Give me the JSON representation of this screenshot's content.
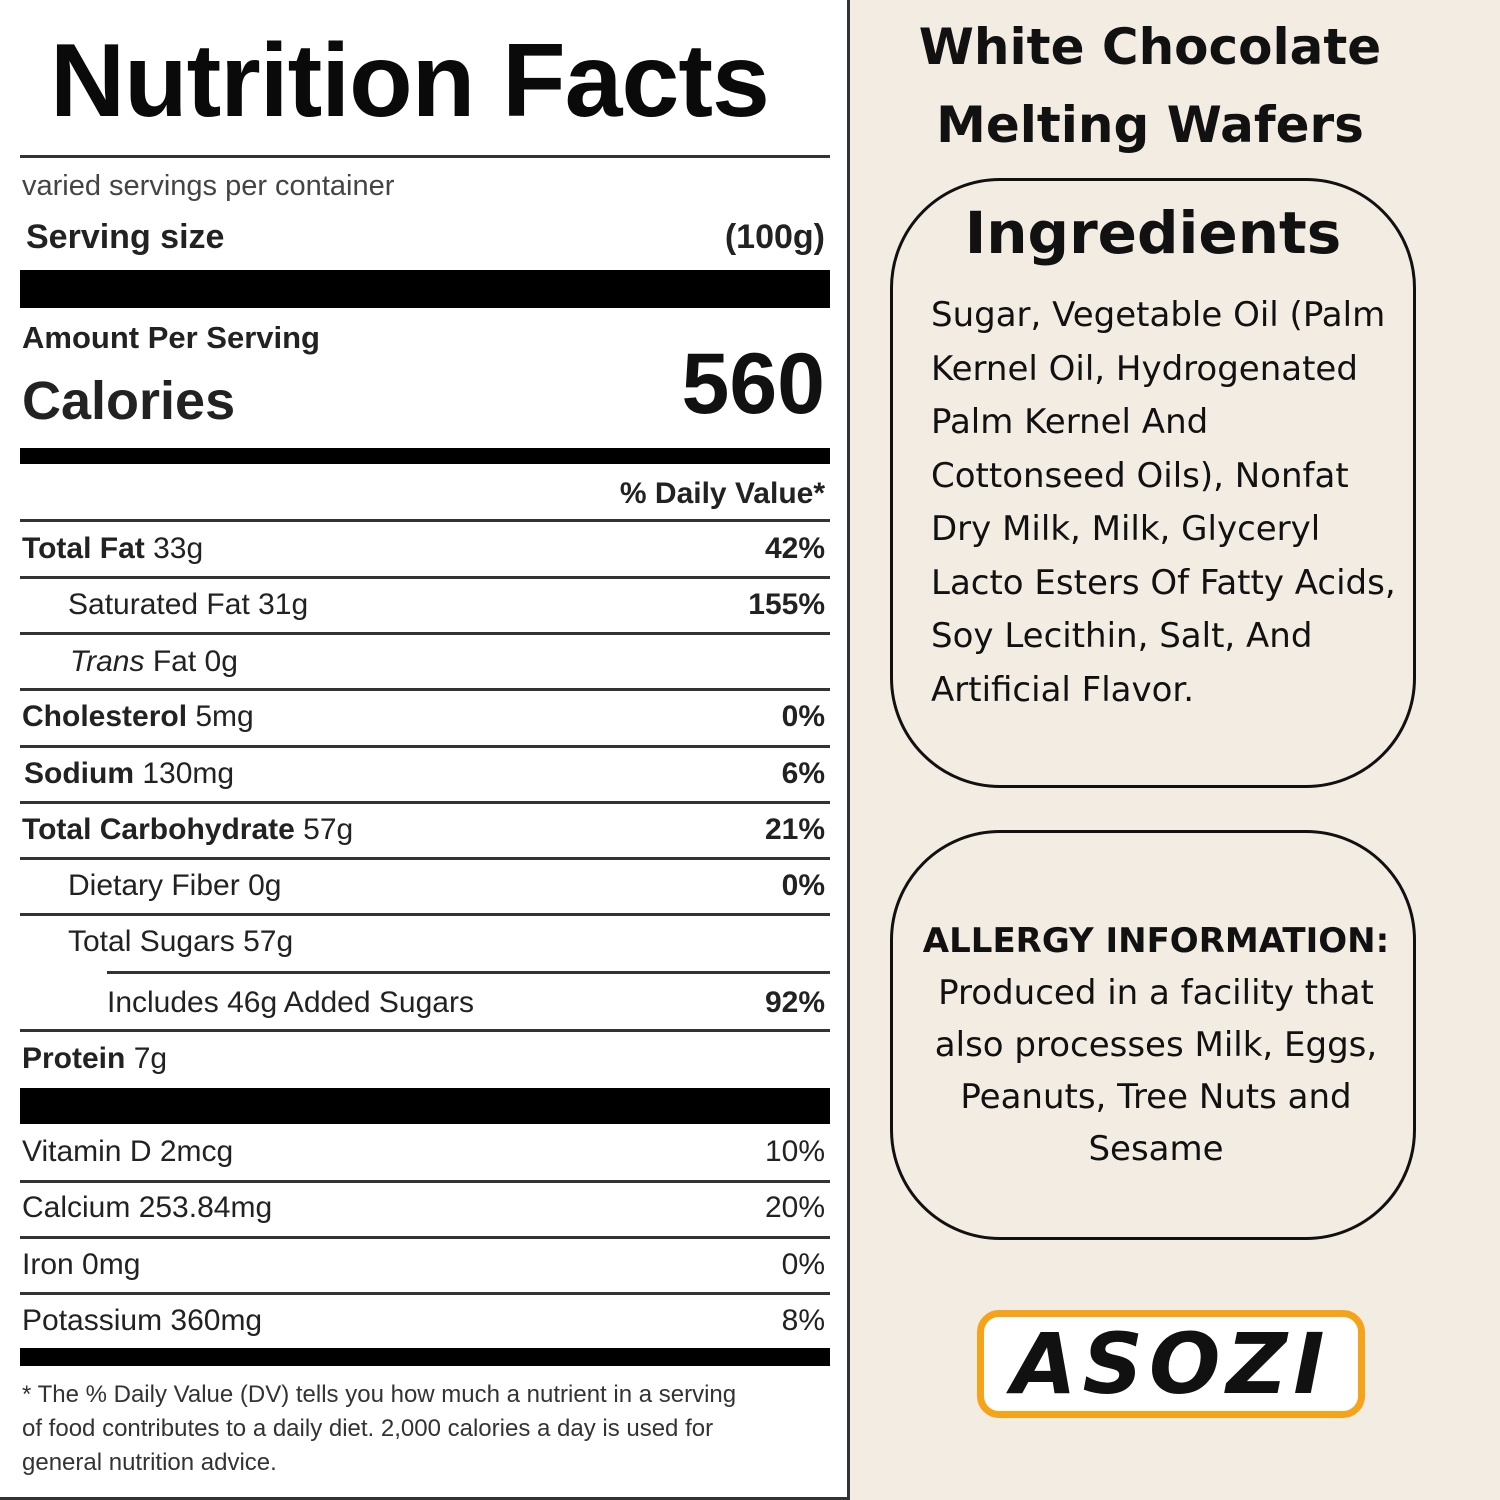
{
  "label": {
    "title": "Nutrition Facts",
    "servings_per_container": "varied servings per container",
    "serving_size_label": "Serving size",
    "serving_size_value": "(100g)",
    "amount_per_serving": "Amount Per Serving",
    "calories_label": "Calories",
    "calories_value": "560",
    "daily_value_header": "% Daily Value*",
    "rows": [
      {
        "name": "Total Fat",
        "amount": "33g",
        "dv": "42%"
      },
      {
        "name": "Saturated Fat",
        "amount": "31g",
        "dv": "155%"
      },
      {
        "name": "Trans",
        "name2": "Fat",
        "amount": "0g",
        "dv": ""
      },
      {
        "name": "Cholesterol",
        "amount": "5mg",
        "dv": "0%"
      },
      {
        "name": "Sodium",
        "amount": "130mg",
        "dv": "6%"
      },
      {
        "name": "Total Carbohydrate",
        "amount": "57g",
        "dv": "21%"
      },
      {
        "name": "Dietary Fiber",
        "amount": "0g",
        "dv": "0%"
      },
      {
        "name": "Total Sugars",
        "amount": "57g",
        "dv": ""
      },
      {
        "name": "Includes 46g Added Sugars",
        "amount": "",
        "dv": "92%"
      },
      {
        "name": "Protein",
        "amount": "7g",
        "dv": ""
      }
    ],
    "vitamins": [
      {
        "name": "Vitamin D 2mcg",
        "dv": "10%"
      },
      {
        "name": "Calcium 253.84mg",
        "dv": "20%"
      },
      {
        "name": "Iron 0mg",
        "dv": "0%"
      },
      {
        "name": "Potassium 360mg",
        "dv": "8%"
      }
    ],
    "footnote": "* The % Daily Value (DV) tells you how much a nutrient in a serving of food contributes to a daily diet. 2,000 calories a day is used for general nutrition advice."
  },
  "product": {
    "title_line1": "White Chocolate",
    "title_line2": "Melting Wafers"
  },
  "ingredients": {
    "title": "Ingredients",
    "text": "Sugar, Vegetable Oil (Palm Kernel Oil, Hydrogenated Palm Kernel And Cottonseed Oils), Nonfat Dry Milk, Milk, Glyceryl Lacto Esters Of Fatty Acids, Soy Lecithin, Salt, And Artificial Flavor."
  },
  "allergy": {
    "title": "ALLERGY INFORMATION:",
    "text": "Produced in a facility that also processes Milk, Eggs, Peanuts, Tree Nuts and Sesame"
  },
  "brand": {
    "logo_text": "ASOZI",
    "colors": {
      "border": "#f5a31a",
      "text": "#111111"
    }
  },
  "colors": {
    "background": "#f3ece2",
    "label": "#ffffff"
  }
}
